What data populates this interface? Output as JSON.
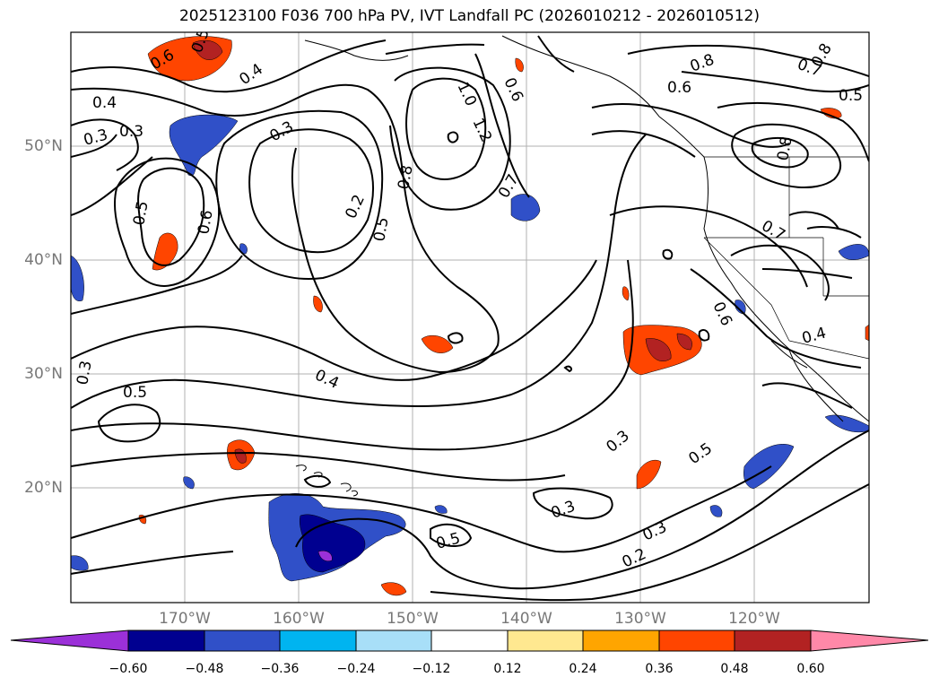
{
  "title": "2025123100 F036 700 hPa PV, IVT Landfall PC (2026010212 - 2026010512)",
  "map": {
    "lat_labels": [
      "50°N",
      "40°N",
      "30°N",
      "20°N"
    ],
    "lon_labels": [
      "170°W",
      "160°W",
      "150°W",
      "140°W",
      "130°W",
      "120°W"
    ],
    "contour_labels": [
      "0.6",
      "0.5",
      "0.4",
      "0.4",
      "0.3",
      "0.3",
      "0.5",
      "0.6",
      "0.3",
      "0.2",
      "0.5",
      "0.8",
      "1.0",
      "1.2",
      "0.6",
      "0.7",
      "0.8",
      "0.7",
      "0.6",
      "0.5",
      "0.8",
      "0.6",
      "0.7",
      "0.8",
      "0.4",
      "0.3",
      "0.5",
      "0.4",
      "0.3",
      "0.5",
      "0.3",
      "0.5",
      "0.3",
      "0.2"
    ],
    "grid": true
  },
  "colorbar": {
    "ticks": [
      "−0.60",
      "−0.48",
      "−0.36",
      "−0.24",
      "−0.12",
      "0.12",
      "0.24",
      "0.36",
      "0.48",
      "0.60"
    ],
    "colors": [
      "#9b30d8",
      "#000090",
      "#3050c8",
      "#00b4f0",
      "#a8dff8",
      "#ffffff",
      "#ffe890",
      "#ffa500",
      "#ff4500",
      "#b22222",
      "#ff88a8"
    ],
    "extend": "both"
  }
}
